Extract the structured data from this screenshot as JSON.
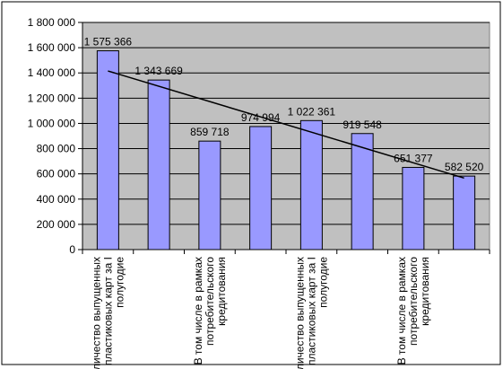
{
  "chart_data": {
    "type": "bar",
    "title": "",
    "xlabel": "",
    "ylabel": "",
    "ylim": [
      0,
      1800000
    ],
    "yticks": [
      "0",
      "200 000",
      "400 000",
      "600 000",
      "800 000",
      "1 000 000",
      "1 200 000",
      "1 400 000",
      "1 600 000",
      "1 800 000"
    ],
    "grid": true,
    "legend": "none",
    "trendline": "linear",
    "categories": [
      "Количество выпущенных пластиковых карт за I полугодие",
      "",
      "В том числе в рамках потребительского кредитования",
      "",
      "Количество выпущенных пластиковых карт за I полугодие",
      "",
      "В том числе в рамках потребительского кредитования",
      ""
    ],
    "values": [
      1575366,
      1343669,
      859718,
      974994,
      1022361,
      919548,
      651377,
      582520
    ],
    "data_labels": [
      "1 575 366",
      "1 343 669",
      "859 718",
      "974 994",
      "1 022 361",
      "919 548",
      "651 377",
      "582 520"
    ],
    "colors": {
      "bar": "#9999ff",
      "plot_bg": "#c0c0c0",
      "grid": "#000000",
      "trend": "#000000"
    }
  }
}
